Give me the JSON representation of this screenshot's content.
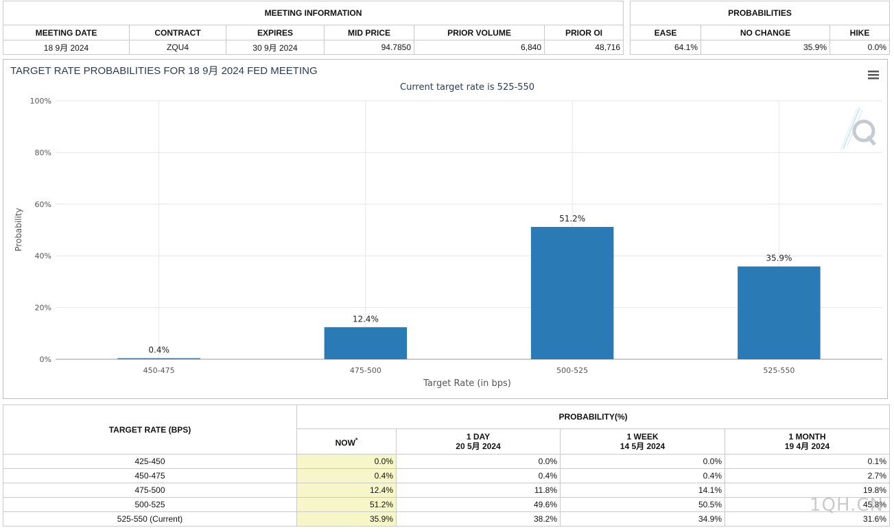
{
  "meeting_info": {
    "title": "MEETING INFORMATION",
    "columns": [
      "MEETING DATE",
      "CONTRACT",
      "EXPIRES",
      "MID PRICE",
      "PRIOR VOLUME",
      "PRIOR OI"
    ],
    "row": [
      "18 9月 2024",
      "ZQU4",
      "30 9月 2024",
      "94.7850",
      "6,840",
      "48,716"
    ]
  },
  "probabilities": {
    "title": "PROBABILITIES",
    "columns": [
      "EASE",
      "NO CHANGE",
      "HIKE"
    ],
    "row": [
      "64.1%",
      "35.9%",
      "0.0%"
    ]
  },
  "chart_data": {
    "type": "bar",
    "title": "TARGET RATE PROBABILITIES FOR 18 9月 2024 FED MEETING",
    "subtitle": "Current target rate is 525-550",
    "xlabel": "Target Rate (in bps)",
    "ylabel": "Probability",
    "categories": [
      "450-475",
      "475-500",
      "500-525",
      "525-550"
    ],
    "values": [
      0.4,
      12.4,
      51.2,
      35.9
    ],
    "data_labels": [
      "0.4%",
      "12.4%",
      "51.2%",
      "35.9%"
    ],
    "ylim": [
      0,
      100
    ],
    "yticks": [
      "0%",
      "20%",
      "40%",
      "60%",
      "80%",
      "100%"
    ],
    "bar_color": "#2a7ab5",
    "grid": true
  },
  "menu_icon": "hamburger-menu-icon",
  "logo_icon": "cme-q-logo-icon",
  "bottom_table": {
    "target_rate_header": "TARGET RATE (BPS)",
    "probability_header": "PROBABILITY(%)",
    "columns": [
      {
        "label": "NOW",
        "sup": "*",
        "sub": ""
      },
      {
        "label": "1 DAY",
        "sub": "20 5月 2024"
      },
      {
        "label": "1 WEEK",
        "sub": "14 5月 2024"
      },
      {
        "label": "1 MONTH",
        "sub": "19 4月 2024"
      }
    ],
    "rows": [
      {
        "rate": "425-450",
        "values": [
          "0.0%",
          "0.0%",
          "0.0%",
          "0.1%"
        ]
      },
      {
        "rate": "450-475",
        "values": [
          "0.4%",
          "0.4%",
          "0.4%",
          "2.7%"
        ]
      },
      {
        "rate": "475-500",
        "values": [
          "12.4%",
          "11.8%",
          "14.1%",
          "19.8%"
        ]
      },
      {
        "rate": "500-525",
        "values": [
          "51.2%",
          "49.6%",
          "50.5%",
          "45.8%"
        ]
      },
      {
        "rate": "525-550 (Current)",
        "values": [
          "35.9%",
          "38.2%",
          "34.9%",
          "31.6%"
        ]
      }
    ]
  },
  "watermark": "1QH.CN"
}
